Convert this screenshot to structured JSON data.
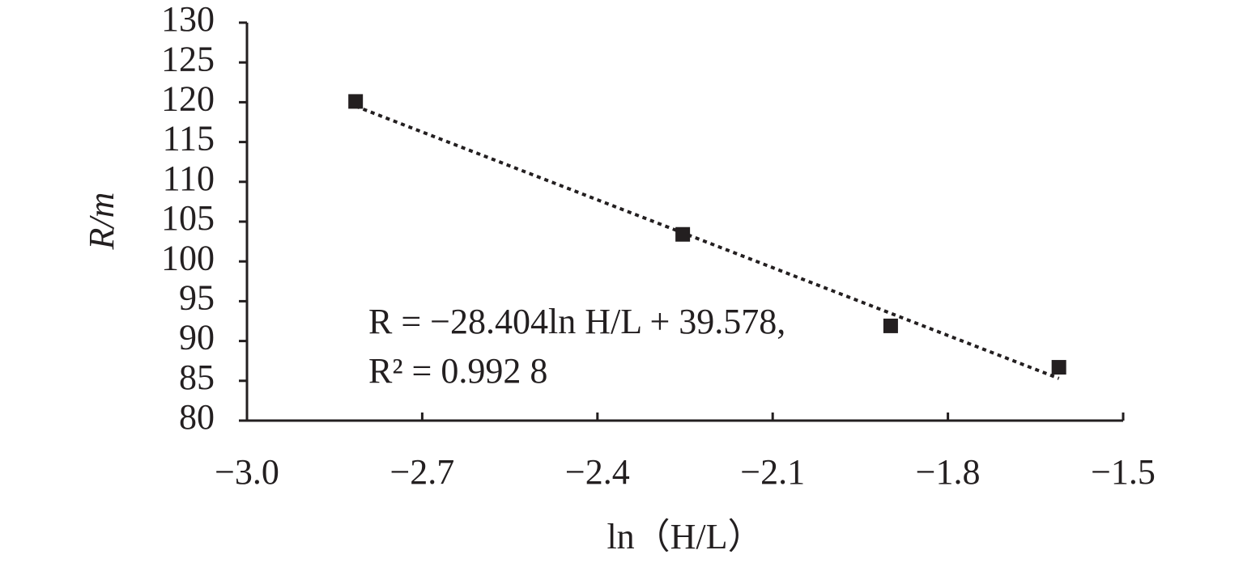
{
  "chart_data": {
    "type": "scatter",
    "x_label": "ln（H/L）",
    "y_label": "R/m",
    "annotations": [
      "R = −28.404ln H/L + 39.578,",
      "R² = 0.992 8"
    ],
    "x": [
      -2.814,
      -2.254,
      -1.898,
      -1.61
    ],
    "values": [
      120.1,
      103.4,
      91.9,
      86.7
    ],
    "color": "#231f20",
    "trendline": {
      "x": [
        -2.814,
        -1.61
      ],
      "values": [
        119.5,
        85.3
      ]
    },
    "xlim": [
      -3.0,
      -1.5
    ],
    "ylim": [
      80,
      130
    ],
    "xticks": [
      {
        "value": -3.0,
        "label": "−3.0"
      },
      {
        "value": -2.7,
        "label": "−2.7"
      },
      {
        "value": -2.4,
        "label": "−2.4"
      },
      {
        "value": -2.1,
        "label": "−2.1"
      },
      {
        "value": -1.8,
        "label": "−1.8"
      },
      {
        "value": -1.5,
        "label": "−1.5"
      }
    ],
    "yticks": [
      80,
      85,
      90,
      95,
      100,
      105,
      110,
      115,
      120,
      125,
      130
    ],
    "grid": false
  }
}
